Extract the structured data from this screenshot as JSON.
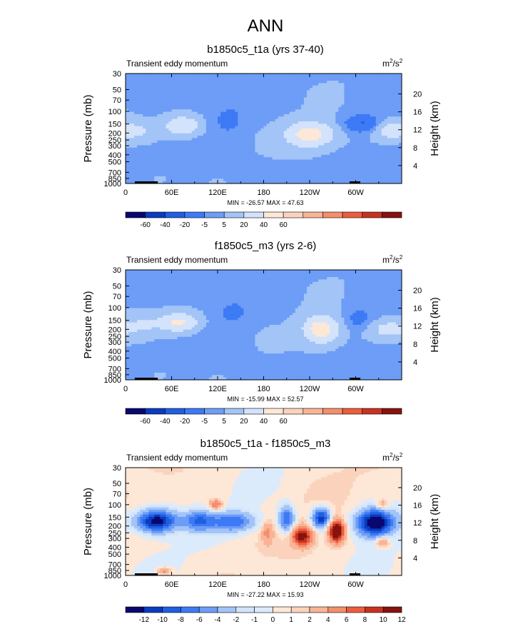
{
  "figure": {
    "title": "ANN"
  },
  "colors": {
    "panel1_levels": [
      "#08086e",
      "#0b3bbf",
      "#1f5fe0",
      "#3d7af5",
      "#6d9df7",
      "#a3c4f7",
      "#d3e3fb",
      "#fde7d6",
      "#fbd3bd",
      "#f9b497",
      "#f48e6c",
      "#ec5d3e",
      "#c63222",
      "#86130f"
    ],
    "diff_levels": [
      "#08086e",
      "#0b3bbf",
      "#1f5fe0",
      "#3d7af5",
      "#6d9df7",
      "#a3c4f7",
      "#d3e3fb",
      "#dcebfb",
      "#fde7d6",
      "#fbd3bd",
      "#f9b497",
      "#f48e6c",
      "#ec5d3e",
      "#c63222",
      "#86130f"
    ],
    "topo": "#000000"
  },
  "chart_data": [
    {
      "type": "heatmap",
      "title": "b1850c5_t1a (yrs 37-40)",
      "subtitle_left": "Transient eddy momentum",
      "units_base": "m",
      "units_exp1": "2",
      "units_mid": "/s",
      "units_exp2": "2",
      "ylabel": "Pressure (mb)",
      "ylabel_right": "Height (km)",
      "x_ticks": [
        "0",
        "60E",
        "120E",
        "180",
        "120W",
        "60W"
      ],
      "x_tick_lon": [
        0,
        60,
        120,
        180,
        240,
        300
      ],
      "xlim": [
        0,
        360
      ],
      "y_ticks": [
        "30",
        "50",
        "70",
        "100",
        "150",
        "200",
        "250",
        "300",
        "400",
        "500",
        "700",
        "850",
        "1000"
      ],
      "y_tick_p": [
        30,
        50,
        70,
        100,
        150,
        200,
        250,
        300,
        400,
        500,
        700,
        850,
        1000
      ],
      "ylim": [
        1000,
        30
      ],
      "height_ticks": [
        "20",
        "16",
        "12",
        "8",
        "4"
      ],
      "height_tick_km": [
        20,
        16,
        12,
        8,
        4
      ],
      "min_max_text": "MIN = -26.57  MAX = 47.63",
      "min": -26.57,
      "max": 47.63,
      "levels": [
        -60,
        -40,
        -20,
        -5,
        5,
        20,
        40,
        60
      ],
      "level_labels": [
        "-60",
        "-40",
        "-20",
        "-5",
        "5",
        "20",
        "40",
        "60"
      ],
      "blobs": [
        {
          "lon": 75,
          "p": 160,
          "amp": 38,
          "slon": 16,
          "sp": 0.22
        },
        {
          "lon": 15,
          "p": 190,
          "amp": 18,
          "slon": 14,
          "sp": 0.18
        },
        {
          "lon": 240,
          "p": 210,
          "amp": 48,
          "slon": 22,
          "sp": 0.28
        },
        {
          "lon": 345,
          "p": 180,
          "amp": 30,
          "slon": 16,
          "sp": 0.22
        },
        {
          "lon": 135,
          "p": 130,
          "amp": -12,
          "slon": 12,
          "sp": 0.28
        },
        {
          "lon": 310,
          "p": 150,
          "amp": -26,
          "slon": 18,
          "sp": 0.2
        },
        {
          "lon": 45,
          "p": 870,
          "amp": 14,
          "slon": 6,
          "sp": 0.08
        }
      ],
      "bg": 3
    },
    {
      "type": "heatmap",
      "title": "f1850c5_m3 (yrs 2-6)",
      "subtitle_left": "Transient eddy momentum",
      "units_base": "m",
      "units_exp1": "2",
      "units_mid": "/s",
      "units_exp2": "2",
      "ylabel": "Pressure (mb)",
      "ylabel_right": "Height (km)",
      "x_ticks": [
        "0",
        "60E",
        "120E",
        "180",
        "120W",
        "60W"
      ],
      "x_tick_lon": [
        0,
        60,
        120,
        180,
        240,
        300
      ],
      "xlim": [
        0,
        360
      ],
      "y_ticks": [
        "30",
        "50",
        "70",
        "100",
        "150",
        "200",
        "250",
        "300",
        "400",
        "500",
        "700",
        "850",
        "1000"
      ],
      "y_tick_p": [
        30,
        50,
        70,
        100,
        150,
        200,
        250,
        300,
        400,
        500,
        700,
        850,
        1000
      ],
      "ylim": [
        1000,
        30
      ],
      "height_ticks": [
        "20",
        "16",
        "12",
        "8",
        "4"
      ],
      "height_tick_km": [
        20,
        16,
        12,
        8,
        4
      ],
      "min_max_text": "MIN = -15.99  MAX = 52.57",
      "min": -15.99,
      "max": 52.57,
      "levels": [
        -60,
        -40,
        -20,
        -5,
        5,
        20,
        40,
        60
      ],
      "level_labels": [
        "-60",
        "-40",
        "-20",
        "-5",
        "5",
        "20",
        "40",
        "60"
      ],
      "blobs": [
        {
          "lon": 70,
          "p": 160,
          "amp": 42,
          "slon": 18,
          "sp": 0.22
        },
        {
          "lon": 25,
          "p": 170,
          "amp": 15,
          "slon": 14,
          "sp": 0.2
        },
        {
          "lon": 255,
          "p": 200,
          "amp": 52,
          "slon": 16,
          "sp": 0.3
        },
        {
          "lon": 345,
          "p": 200,
          "amp": 26,
          "slon": 20,
          "sp": 0.22
        },
        {
          "lon": 140,
          "p": 115,
          "amp": -12,
          "slon": 12,
          "sp": 0.22
        },
        {
          "lon": 305,
          "p": 145,
          "amp": -15,
          "slon": 14,
          "sp": 0.25
        },
        {
          "lon": 45,
          "p": 870,
          "amp": 14,
          "slon": 6,
          "sp": 0.08
        }
      ],
      "bg": 3
    },
    {
      "type": "heatmap",
      "title": "b1850c5_t1a - f1850c5_m3",
      "subtitle_left": "Transient eddy momentum",
      "units_base": "m",
      "units_exp1": "2",
      "units_mid": "/s",
      "units_exp2": "2",
      "ylabel": "Pressure (mb)",
      "ylabel_right": "Height (km)",
      "x_ticks": [
        "0",
        "60E",
        "120E",
        "180",
        "120W",
        "60W"
      ],
      "x_tick_lon": [
        0,
        60,
        120,
        180,
        240,
        300
      ],
      "xlim": [
        0,
        360
      ],
      "y_ticks": [
        "30",
        "50",
        "70",
        "100",
        "150",
        "200",
        "250",
        "300",
        "400",
        "500",
        "700",
        "850",
        "1000"
      ],
      "y_tick_p": [
        30,
        50,
        70,
        100,
        150,
        200,
        250,
        300,
        400,
        500,
        700,
        850,
        1000
      ],
      "ylim": [
        1000,
        30
      ],
      "height_ticks": [
        "20",
        "16",
        "12",
        "8",
        "4"
      ],
      "height_tick_km": [
        20,
        16,
        12,
        8,
        4
      ],
      "min_max_text": "MIN = -27.22  MAX = 15.93",
      "min": -27.22,
      "max": 15.93,
      "levels": [
        -12,
        -10,
        -8,
        -6,
        -4,
        -2,
        -1,
        0,
        1,
        2,
        4,
        6,
        8,
        10,
        12
      ],
      "level_labels": [
        "-12",
        "-10",
        "-8",
        "-6",
        "-4",
        "-2",
        "-1",
        "0",
        "1",
        "2",
        "4",
        "6",
        "8",
        "10",
        "12"
      ],
      "blobs": [
        {
          "lon": 40,
          "p": 170,
          "amp": -14,
          "slon": 18,
          "sp": 0.25
        },
        {
          "lon": 95,
          "p": 170,
          "amp": -8,
          "slon": 14,
          "sp": 0.22
        },
        {
          "lon": 140,
          "p": 175,
          "amp": -8,
          "slon": 20,
          "sp": 0.22
        },
        {
          "lon": 210,
          "p": 160,
          "amp": -9,
          "slon": 7,
          "sp": 0.28
        },
        {
          "lon": 255,
          "p": 155,
          "amp": -12,
          "slon": 8,
          "sp": 0.22
        },
        {
          "lon": 325,
          "p": 180,
          "amp": -16,
          "slon": 16,
          "sp": 0.3
        },
        {
          "lon": 230,
          "p": 280,
          "amp": 11,
          "slon": 9,
          "sp": 0.22
        },
        {
          "lon": 275,
          "p": 240,
          "amp": 14,
          "slon": 7,
          "sp": 0.25
        },
        {
          "lon": 118,
          "p": 100,
          "amp": 6,
          "slon": 6,
          "sp": 0.12
        },
        {
          "lon": 335,
          "p": 330,
          "amp": 5,
          "slon": 6,
          "sp": 0.12
        },
        {
          "lon": 335,
          "p": 100,
          "amp": 4,
          "slon": 6,
          "sp": 0.12
        },
        {
          "lon": 185,
          "p": 250,
          "amp": 4,
          "slon": 5,
          "sp": 0.25
        },
        {
          "lon": 50,
          "p": 870,
          "amp": 5,
          "slon": 6,
          "sp": 0.08
        }
      ],
      "bg": 0.5
    }
  ]
}
